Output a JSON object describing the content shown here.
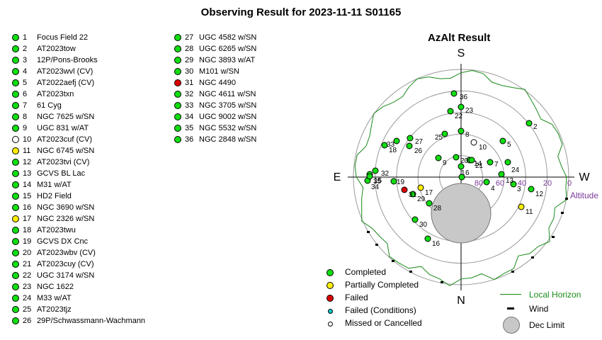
{
  "title": "Observing Result for 2023-11-11 S01165",
  "plot": {
    "title": "AzAlt Result",
    "dirs": {
      "s": "S",
      "n": "N",
      "e": "E",
      "w": "W"
    },
    "alt_labels": [
      "80",
      "60",
      "40",
      "20",
      "0"
    ],
    "alt_axis": "Altitude"
  },
  "colors": {
    "completed": "#11dd11",
    "partial": "#ffee00",
    "failed": "#dd0000",
    "failed_cond": "#00cccc",
    "missed": "#ffffff",
    "horizon": "#1a8a1a"
  },
  "targets": [
    {
      "n": "1",
      "name": "Focus Field 22",
      "status": "completed"
    },
    {
      "n": "2",
      "name": "AT2023tow",
      "status": "completed"
    },
    {
      "n": "3",
      "name": "12P/Pons-Brooks",
      "status": "completed"
    },
    {
      "n": "4",
      "name": "AT2023wvl (CV)",
      "status": "completed"
    },
    {
      "n": "5",
      "name": "AT2022aefj (CV)",
      "status": "completed"
    },
    {
      "n": "6",
      "name": "AT2023txn",
      "status": "completed"
    },
    {
      "n": "7",
      "name": "61 Cyg",
      "status": "completed"
    },
    {
      "n": "8",
      "name": "NGC 7625 w/SN",
      "status": "completed"
    },
    {
      "n": "9",
      "name": "UGC 831 w/AT",
      "status": "completed"
    },
    {
      "n": "10",
      "name": "AT2023cuf (CV)",
      "status": "missed"
    },
    {
      "n": "11",
      "name": "NGC 6745 w/SN",
      "status": "partial"
    },
    {
      "n": "12",
      "name": "AT2023tvi (CV)",
      "status": "completed"
    },
    {
      "n": "13",
      "name": "GCVS BL Lac",
      "status": "completed"
    },
    {
      "n": "14",
      "name": "M31 w/AT",
      "status": "completed"
    },
    {
      "n": "15",
      "name": "HD2 Field",
      "status": "completed"
    },
    {
      "n": "16",
      "name": "NGC 3690 w/SN",
      "status": "completed"
    },
    {
      "n": "17",
      "name": "NGC 2326 w/SN",
      "status": "partial"
    },
    {
      "n": "18",
      "name": "AT2023twu",
      "status": "completed"
    },
    {
      "n": "19",
      "name": "GCVS DX Cnc",
      "status": "completed"
    },
    {
      "n": "20",
      "name": "AT2023wbv (CV)",
      "status": "completed"
    },
    {
      "n": "21",
      "name": "AT2023cuy (CV)",
      "status": "completed"
    },
    {
      "n": "22",
      "name": "UGC 3174 w/SN",
      "status": "completed"
    },
    {
      "n": "23",
      "name": "NGC 1622",
      "status": "completed"
    },
    {
      "n": "24",
      "name": "M33 w/AT",
      "status": "completed"
    },
    {
      "n": "25",
      "name": "AT2023tjz",
      "status": "completed"
    },
    {
      "n": "26",
      "name": "29P/Schwassmann-Wachmann",
      "status": "completed"
    },
    {
      "n": "27",
      "name": "UGC 4582 w/SN",
      "status": "completed"
    },
    {
      "n": "28",
      "name": "UGC 6265 w/SN",
      "status": "completed"
    },
    {
      "n": "29",
      "name": "NGC 3893 w/AT",
      "status": "completed"
    },
    {
      "n": "30",
      "name": "M101 w/SN",
      "status": "completed"
    },
    {
      "n": "31",
      "name": "NGC 4490",
      "status": "failed"
    },
    {
      "n": "32",
      "name": "NGC 4611 w/SN",
      "status": "completed"
    },
    {
      "n": "33",
      "name": "NGC 3705 w/SN",
      "status": "completed"
    },
    {
      "n": "34",
      "name": "UGC 9002 w/SN",
      "status": "completed"
    },
    {
      "n": "35",
      "name": "NGC 5532 w/SN",
      "status": "completed"
    },
    {
      "n": "36",
      "name": "NGC 2848 w/SN",
      "status": "completed"
    }
  ],
  "legend": [
    {
      "label": "Completed",
      "status": "completed"
    },
    {
      "label": "Partially Completed",
      "status": "partial"
    },
    {
      "label": "Failed",
      "status": "failed"
    },
    {
      "label": "Failed (Conditions)",
      "status": "failed_cond"
    },
    {
      "label": "Missed or Cancelled",
      "status": "missed"
    }
  ],
  "legend2": {
    "horizon": "Local Horizon",
    "wind": "Wind",
    "dec": "Dec Limit"
  }
}
